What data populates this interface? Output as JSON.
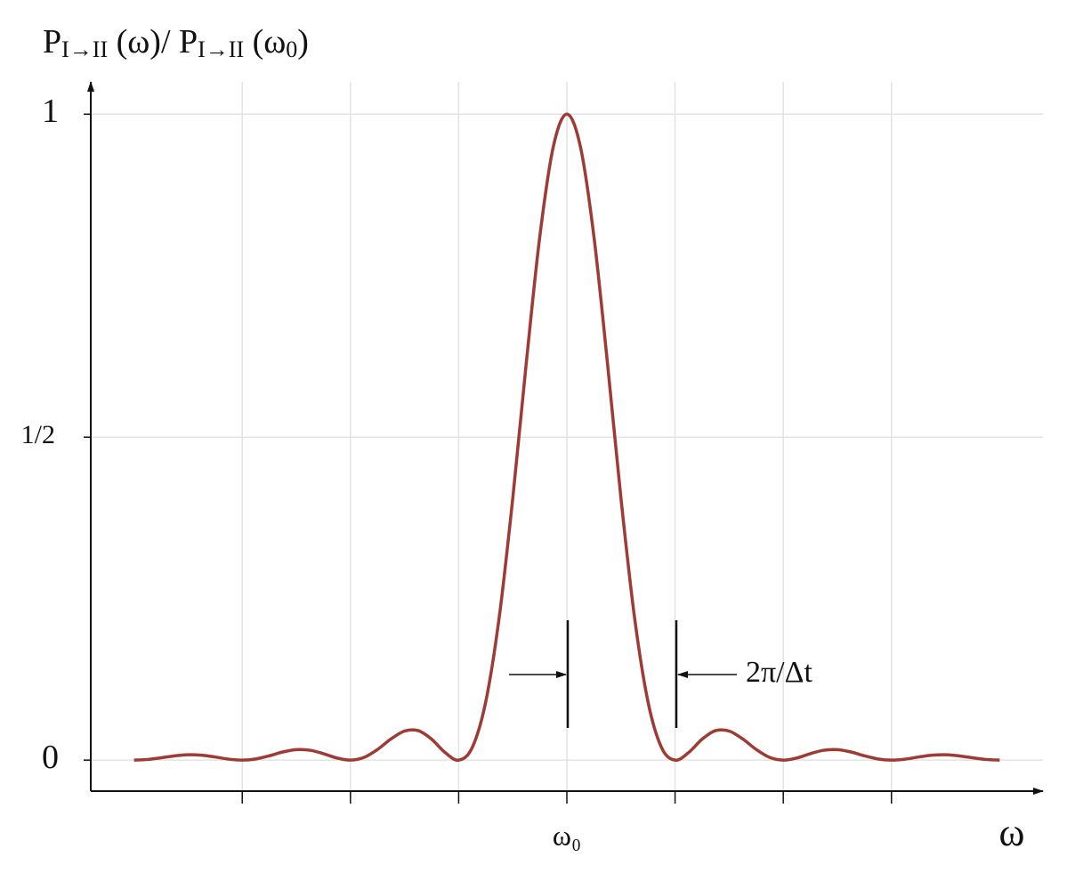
{
  "chart_data": {
    "type": "line",
    "ylabel": [
      {
        "text": "P"
      },
      {
        "text": "I→II",
        "sub": true
      },
      {
        "text": " (ω)/ P"
      },
      {
        "text": "I→II",
        "sub": true
      },
      {
        "text": " (ω"
      },
      {
        "text": "0",
        "sub": true
      },
      {
        "text": ")"
      }
    ],
    "xlabel": "ω",
    "annotation": "2π/Δt",
    "xlim": [
      -4.4,
      4.4
    ],
    "ylim": [
      -0.048,
      1.05
    ],
    "xticks": [
      {
        "value": -3,
        "label": null
      },
      {
        "value": -2,
        "label": null
      },
      {
        "value": -1,
        "label": null
      },
      {
        "value": 0,
        "label": "ω₀"
      },
      {
        "value": 1,
        "label": null
      },
      {
        "value": 2,
        "label": null
      },
      {
        "value": 3,
        "label": null
      }
    ],
    "yticks": [
      0,
      {
        "value": 0.5,
        "label": "1/2"
      },
      1
    ],
    "grid": true,
    "series": [
      {
        "color": "#9e3b34",
        "x": [
          -4,
          -3.875,
          -3.75,
          -3.625,
          -3.5,
          -3.375,
          -3.25,
          -3.125,
          -3,
          -2.875,
          -2.75,
          -2.625,
          -2.5,
          -2.375,
          -2.25,
          -2.125,
          -2,
          -1.875,
          -1.75,
          -1.625,
          -1.5,
          -1.375,
          -1.25,
          -1.125,
          -1,
          -0.875,
          -0.75,
          -0.625,
          -0.5,
          -0.375,
          -0.25,
          -0.125,
          0,
          0.125,
          0.25,
          0.375,
          0.5,
          0.625,
          0.75,
          0.875,
          1,
          1.125,
          1.25,
          1.375,
          1.5,
          1.625,
          1.75,
          1.875,
          2,
          2.125,
          2.25,
          2.375,
          2.5,
          2.625,
          2.75,
          2.875,
          3,
          3.125,
          3.25,
          3.375,
          3.5,
          3.625,
          3.75,
          3.875,
          4
        ],
        "values": [
          0,
          0.001,
          0.0036,
          0.0066,
          0.0083,
          0.0076,
          0.0048,
          0.0015,
          0,
          0.0018,
          0.0067,
          0.0126,
          0.0162,
          0.0153,
          0.01,
          0.0033,
          0,
          0.0042,
          0.0165,
          0.0328,
          0.045,
          0.0457,
          0.0324,
          0.0117,
          0,
          0.0194,
          0.0901,
          0.2214,
          0.4053,
          0.615,
          0.8106,
          0.9497,
          1,
          0.9497,
          0.8106,
          0.615,
          0.4053,
          0.2214,
          0.0901,
          0.0194,
          0,
          0.0117,
          0.0324,
          0.0457,
          0.045,
          0.0328,
          0.0165,
          0.0042,
          0,
          0.0033,
          0.01,
          0.0153,
          0.0162,
          0.0126,
          0.0067,
          0.0018,
          0,
          0.0015,
          0.0048,
          0.0076,
          0.0083,
          0.0066,
          0.0036,
          0.001,
          0
        ]
      }
    ]
  }
}
